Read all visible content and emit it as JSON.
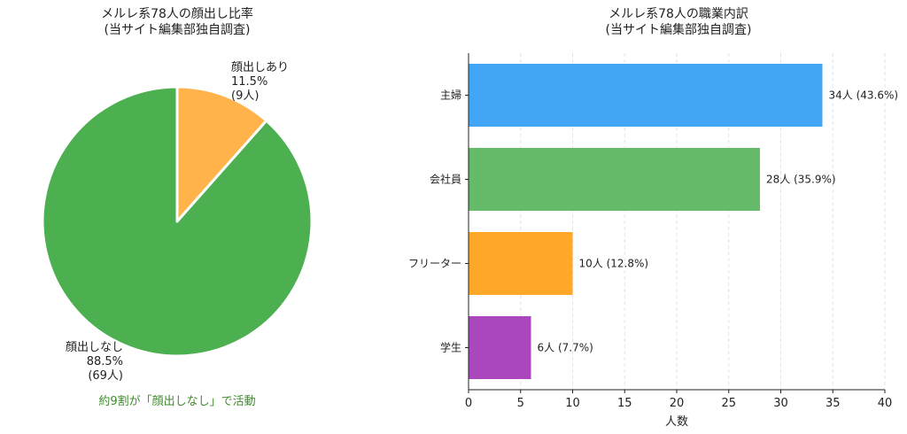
{
  "colors": {
    "pie_yes": "#ffb34a",
    "pie_no": "#4caf50",
    "note": "#3f8a2c",
    "grid": "#e3e3e3"
  },
  "left": {
    "title_line1": "メルレ系78人の顔出し比率",
    "title_line2": "(当サイト編集部独自調査)",
    "note": "約9割が「顔出しなし」で活動"
  },
  "right": {
    "title_line1": "メルレ系78人の職業内訳",
    "title_line2": "(当サイト編集部独自調査)"
  },
  "chart_data": [
    {
      "type": "pie",
      "slices": [
        {
          "label": "顔出しあり",
          "value": 9,
          "pct": "11.5%",
          "count": "(9人)",
          "color": "#ffb34a"
        },
        {
          "label": "顔出しなし",
          "value": 69,
          "pct": "88.5%",
          "count": "(69人)",
          "color": "#4caf50"
        }
      ]
    },
    {
      "type": "bar",
      "orientation": "horizontal",
      "categories": [
        "主婦",
        "会社員",
        "フリーター",
        "学生"
      ],
      "values": [
        34,
        28,
        10,
        6
      ],
      "data_labels": [
        "34人 (43.6%)",
        "28人 (35.9%)",
        "10人 (12.8%)",
        "6人 (7.7%)"
      ],
      "colors": [
        "#42a5f5",
        "#66bb6a",
        "#ffa726",
        "#ab47bc"
      ],
      "xlabel": "人数",
      "xlim": [
        0,
        40
      ],
      "xticks": [
        0,
        5,
        10,
        15,
        20,
        25,
        30,
        35,
        40
      ],
      "grid": "vertical dashed"
    }
  ]
}
